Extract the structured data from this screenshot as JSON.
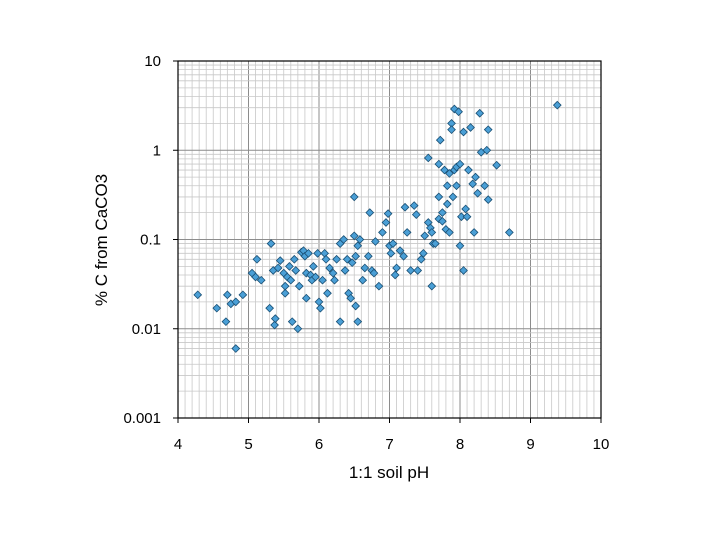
{
  "chart_data": {
    "type": "scatter",
    "xlabel": "1:1 soil pH",
    "ylabel": "% C from CaCO3",
    "xlim": [
      4,
      10
    ],
    "ylim": [
      0.001,
      10
    ],
    "yscale": "log",
    "grid": true,
    "legend": "none",
    "marker": "diamond",
    "marker_color": "#4a9fd6",
    "marker_edge": "#1a4f73",
    "grid_major_color": "#8c8c8c",
    "grid_minor_color": "#c8c8c8",
    "x_ticks": [
      "4",
      "5",
      "6",
      "7",
      "8",
      "9",
      "10"
    ],
    "y_ticks": [
      "10",
      "1",
      "0.1",
      "0.01",
      "0.001"
    ],
    "points": [
      [
        4.28,
        0.024
      ],
      [
        4.55,
        0.017
      ],
      [
        4.68,
        0.012
      ],
      [
        4.7,
        0.024
      ],
      [
        4.75,
        0.019
      ],
      [
        4.82,
        0.02
      ],
      [
        4.82,
        0.006
      ],
      [
        4.92,
        0.024
      ],
      [
        5.05,
        0.042
      ],
      [
        5.12,
        0.06
      ],
      [
        5.1,
        0.038
      ],
      [
        5.18,
        0.035
      ],
      [
        5.3,
        0.017
      ],
      [
        5.32,
        0.09
      ],
      [
        5.35,
        0.045
      ],
      [
        5.37,
        0.011
      ],
      [
        5.38,
        0.013
      ],
      [
        5.42,
        0.048
      ],
      [
        5.45,
        0.058
      ],
      [
        5.5,
        0.042
      ],
      [
        5.52,
        0.03
      ],
      [
        5.52,
        0.025
      ],
      [
        5.55,
        0.038
      ],
      [
        5.58,
        0.05
      ],
      [
        5.6,
        0.035
      ],
      [
        5.62,
        0.012
      ],
      [
        5.65,
        0.06
      ],
      [
        5.67,
        0.045
      ],
      [
        5.7,
        0.01
      ],
      [
        5.72,
        0.03
      ],
      [
        5.75,
        0.072
      ],
      [
        5.78,
        0.075
      ],
      [
        5.8,
        0.065
      ],
      [
        5.82,
        0.042
      ],
      [
        5.82,
        0.022
      ],
      [
        5.85,
        0.07
      ],
      [
        5.88,
        0.04
      ],
      [
        5.9,
        0.035
      ],
      [
        5.92,
        0.05
      ],
      [
        5.95,
        0.038
      ],
      [
        5.98,
        0.07
      ],
      [
        6.0,
        0.02
      ],
      [
        6.02,
        0.017
      ],
      [
        6.05,
        0.035
      ],
      [
        6.08,
        0.07
      ],
      [
        6.1,
        0.06
      ],
      [
        6.12,
        0.025
      ],
      [
        6.15,
        0.048
      ],
      [
        6.2,
        0.042
      ],
      [
        6.22,
        0.035
      ],
      [
        6.25,
        0.06
      ],
      [
        6.3,
        0.012
      ],
      [
        6.3,
        0.09
      ],
      [
        6.35,
        0.1
      ],
      [
        6.37,
        0.045
      ],
      [
        6.4,
        0.06
      ],
      [
        6.42,
        0.025
      ],
      [
        6.45,
        0.022
      ],
      [
        6.47,
        0.055
      ],
      [
        6.5,
        0.11
      ],
      [
        6.5,
        0.3
      ],
      [
        6.52,
        0.065
      ],
      [
        6.52,
        0.018
      ],
      [
        6.55,
        0.085
      ],
      [
        6.55,
        0.012
      ],
      [
        6.58,
        0.1
      ],
      [
        6.62,
        0.035
      ],
      [
        6.65,
        0.048
      ],
      [
        6.7,
        0.065
      ],
      [
        6.72,
        0.2
      ],
      [
        6.75,
        0.045
      ],
      [
        6.78,
        0.042
      ],
      [
        6.8,
        0.095
      ],
      [
        6.85,
        0.03
      ],
      [
        6.9,
        0.12
      ],
      [
        6.95,
        0.155
      ],
      [
        6.98,
        0.195
      ],
      [
        7.0,
        0.085
      ],
      [
        7.02,
        0.07
      ],
      [
        7.05,
        0.09
      ],
      [
        7.08,
        0.04
      ],
      [
        7.1,
        0.048
      ],
      [
        7.15,
        0.075
      ],
      [
        7.2,
        0.065
      ],
      [
        7.22,
        0.23
      ],
      [
        7.25,
        0.12
      ],
      [
        7.3,
        0.045
      ],
      [
        7.35,
        0.24
      ],
      [
        7.38,
        0.19
      ],
      [
        7.4,
        0.045
      ],
      [
        7.45,
        0.06
      ],
      [
        7.48,
        0.07
      ],
      [
        7.5,
        0.11
      ],
      [
        7.55,
        0.155
      ],
      [
        7.55,
        0.82
      ],
      [
        7.58,
        0.135
      ],
      [
        7.6,
        0.03
      ],
      [
        7.6,
        0.12
      ],
      [
        7.62,
        0.09
      ],
      [
        7.65,
        0.09
      ],
      [
        7.7,
        0.17
      ],
      [
        7.7,
        0.7
      ],
      [
        7.7,
        0.3
      ],
      [
        7.72,
        1.3
      ],
      [
        7.75,
        0.16
      ],
      [
        7.75,
        0.2
      ],
      [
        7.78,
        0.6
      ],
      [
        7.8,
        0.13
      ],
      [
        7.82,
        0.4
      ],
      [
        7.82,
        0.25
      ],
      [
        7.85,
        0.55
      ],
      [
        7.85,
        0.12
      ],
      [
        7.88,
        2.0
      ],
      [
        7.88,
        1.7
      ],
      [
        7.9,
        0.3
      ],
      [
        7.92,
        2.9
      ],
      [
        7.92,
        0.6
      ],
      [
        7.95,
        0.65
      ],
      [
        7.95,
        0.4
      ],
      [
        7.98,
        2.7
      ],
      [
        8.0,
        0.085
      ],
      [
        8.0,
        0.7
      ],
      [
        8.02,
        0.18
      ],
      [
        8.05,
        1.6
      ],
      [
        8.05,
        0.045
      ],
      [
        8.08,
        0.22
      ],
      [
        8.1,
        0.18
      ],
      [
        8.12,
        0.6
      ],
      [
        8.15,
        1.8
      ],
      [
        8.18,
        0.42
      ],
      [
        8.2,
        0.12
      ],
      [
        8.22,
        0.5
      ],
      [
        8.25,
        0.33
      ],
      [
        8.28,
        2.6
      ],
      [
        8.3,
        0.95
      ],
      [
        8.35,
        0.4
      ],
      [
        8.38,
        1.0
      ],
      [
        8.4,
        1.7
      ],
      [
        8.4,
        0.28
      ],
      [
        8.52,
        0.68
      ],
      [
        8.7,
        0.12
      ],
      [
        9.38,
        3.2
      ]
    ]
  }
}
